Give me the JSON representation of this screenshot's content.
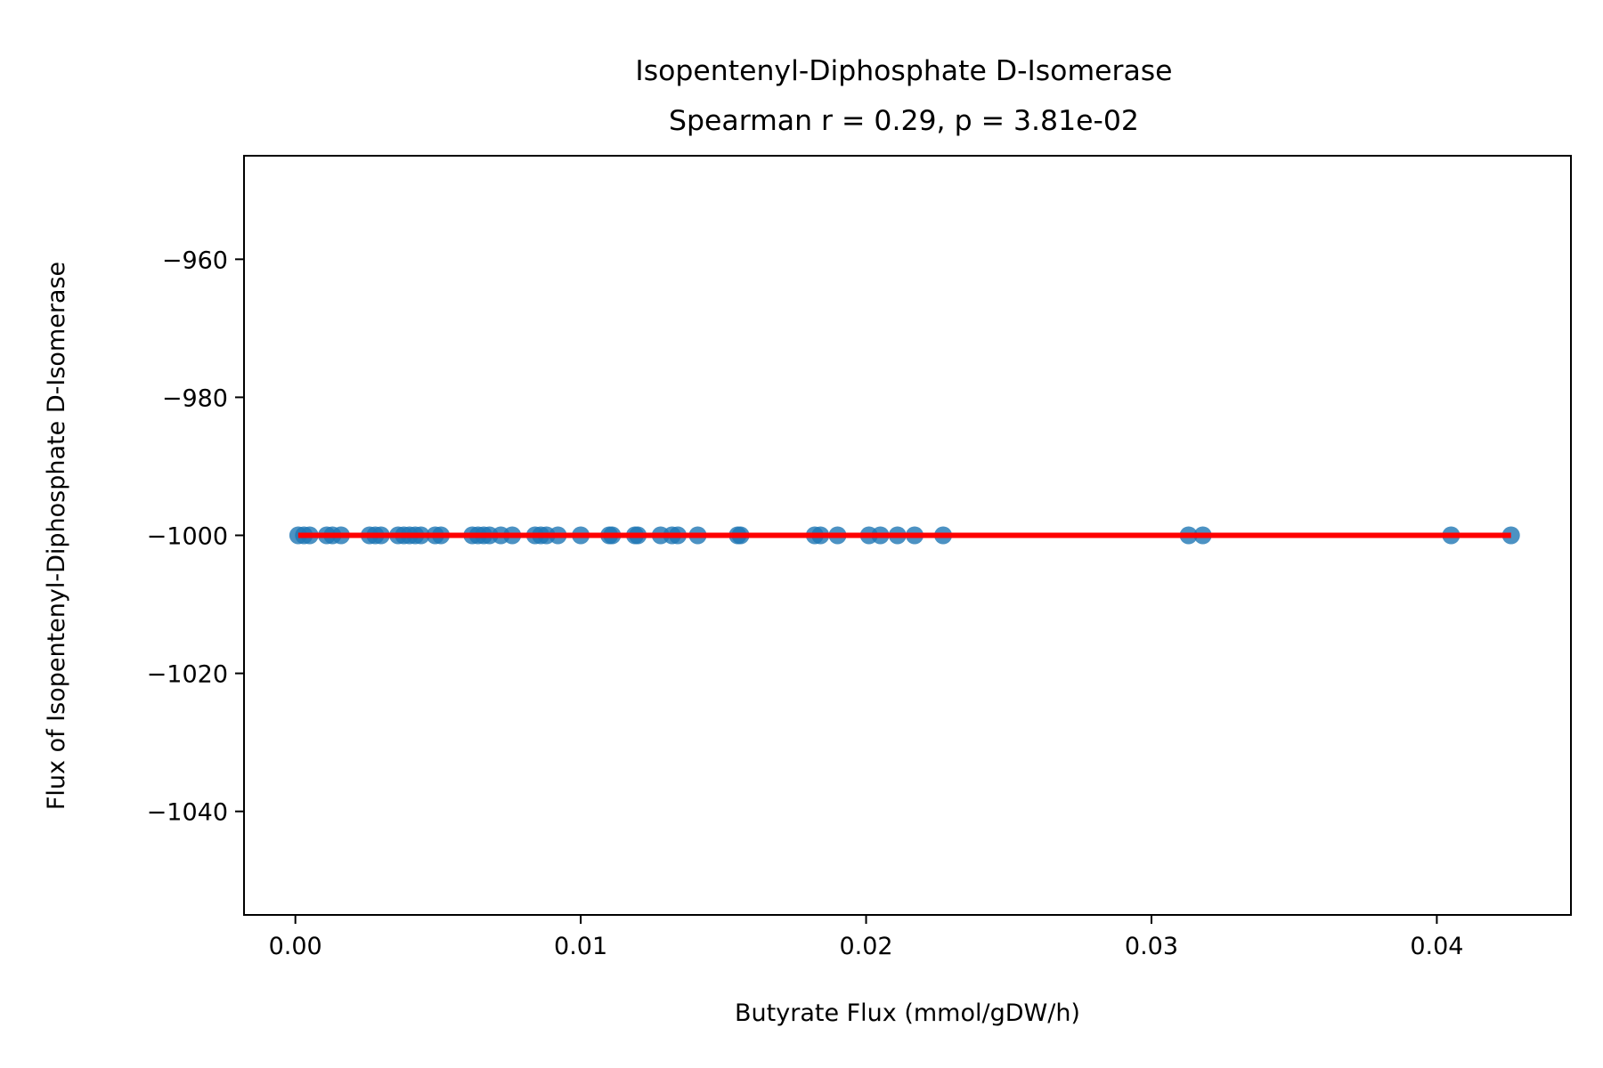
{
  "chart_data": {
    "type": "scatter",
    "title": "Isopentenyl-Diphosphate D-Isomerase",
    "subtitle": "Spearman r = 0.29, p = 3.81e-02",
    "xlabel": "Butyrate Flux (mmol/gDW/h)",
    "ylabel": "Flux of Isopentenyl-Diphosphate D-Isomerase",
    "xlim": [
      -0.0018,
      0.0447
    ],
    "ylim": [
      -1055,
      -945
    ],
    "xticks": [
      {
        "value": 0.0,
        "label": "0.00"
      },
      {
        "value": 0.01,
        "label": "0.01"
      },
      {
        "value": 0.02,
        "label": "0.02"
      },
      {
        "value": 0.03,
        "label": "0.03"
      },
      {
        "value": 0.04,
        "label": "0.04"
      }
    ],
    "yticks": [
      {
        "value": -960,
        "label": "−960"
      },
      {
        "value": -980,
        "label": "−980"
      },
      {
        "value": -1000,
        "label": "−1000"
      },
      {
        "value": -1020,
        "label": "−1020"
      },
      {
        "value": -1040,
        "label": "−1040"
      }
    ],
    "grid": false,
    "point_color": "#1f77b4",
    "fit_color": "#ff0000",
    "points": [
      [
        0.0001,
        -1000
      ],
      [
        0.0003,
        -1000
      ],
      [
        0.0005,
        -1000
      ],
      [
        0.0011,
        -1000
      ],
      [
        0.0013,
        -1000
      ],
      [
        0.0016,
        -1000
      ],
      [
        0.0026,
        -1000
      ],
      [
        0.0028,
        -1000
      ],
      [
        0.003,
        -1000
      ],
      [
        0.0036,
        -1000
      ],
      [
        0.0038,
        -1000
      ],
      [
        0.004,
        -1000
      ],
      [
        0.0042,
        -1000
      ],
      [
        0.0044,
        -1000
      ],
      [
        0.0049,
        -1000
      ],
      [
        0.0051,
        -1000
      ],
      [
        0.0062,
        -1000
      ],
      [
        0.0064,
        -1000
      ],
      [
        0.0066,
        -1000
      ],
      [
        0.0068,
        -1000
      ],
      [
        0.0072,
        -1000
      ],
      [
        0.0076,
        -1000
      ],
      [
        0.0084,
        -1000
      ],
      [
        0.0086,
        -1000
      ],
      [
        0.0088,
        -1000
      ],
      [
        0.0092,
        -1000
      ],
      [
        0.01,
        -1000
      ],
      [
        0.011,
        -1000
      ],
      [
        0.0111,
        -1000
      ],
      [
        0.0119,
        -1000
      ],
      [
        0.012,
        -1000
      ],
      [
        0.0128,
        -1000
      ],
      [
        0.0132,
        -1000
      ],
      [
        0.0134,
        -1000
      ],
      [
        0.0141,
        -1000
      ],
      [
        0.0155,
        -1000
      ],
      [
        0.0156,
        -1000
      ],
      [
        0.0182,
        -1000
      ],
      [
        0.0184,
        -1000
      ],
      [
        0.019,
        -1000
      ],
      [
        0.0201,
        -1000
      ],
      [
        0.0205,
        -1000
      ],
      [
        0.0211,
        -1000
      ],
      [
        0.0217,
        -1000
      ],
      [
        0.0227,
        -1000
      ],
      [
        0.0313,
        -1000
      ],
      [
        0.0318,
        -1000
      ],
      [
        0.0405,
        -1000
      ],
      [
        0.0426,
        -1000
      ]
    ],
    "fit_line": {
      "x": [
        0.0001,
        0.0426
      ],
      "y": [
        -1000,
        -1000
      ]
    }
  }
}
